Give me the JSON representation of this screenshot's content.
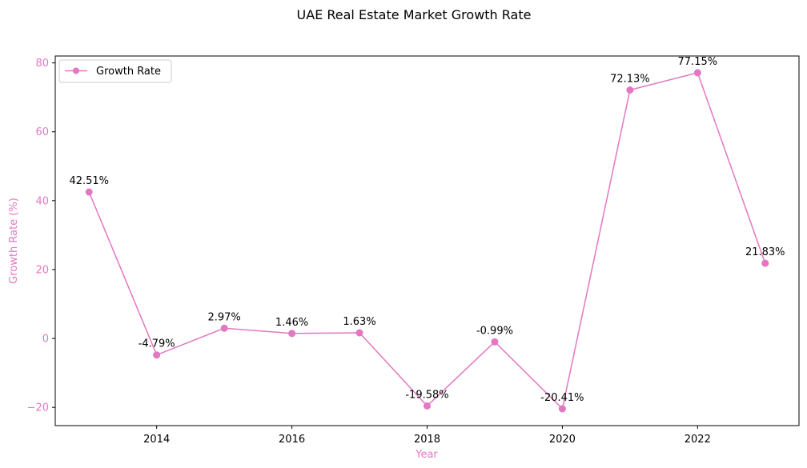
{
  "chart_data": {
    "type": "line",
    "title": "UAE Real Estate Market Growth Rate",
    "xlabel": "Year",
    "ylabel": "Growth Rate (%)",
    "x": [
      2013,
      2014,
      2015,
      2016,
      2017,
      2018,
      2019,
      2020,
      2021,
      2022,
      2023
    ],
    "series": [
      {
        "name": "Growth Rate",
        "values": [
          42.51,
          -4.79,
          2.97,
          1.46,
          1.63,
          -19.58,
          -0.99,
          -20.41,
          72.13,
          77.15,
          21.83
        ],
        "labels": [
          "42.51%",
          "-4.79%",
          "2.97%",
          "1.46%",
          "1.63%",
          "-19.58%",
          "-0.99%",
          "-20.41%",
          "72.13%",
          "77.15%",
          "21.83%"
        ]
      }
    ],
    "xticks": [
      2014,
      2016,
      2018,
      2020,
      2022
    ],
    "xtick_labels": [
      "2014",
      "2016",
      "2018",
      "2020",
      "2022"
    ],
    "yticks": [
      -20,
      0,
      20,
      40,
      60,
      80
    ],
    "ytick_labels": [
      "−20",
      "0",
      "20",
      "40",
      "60",
      "80"
    ],
    "xlim": [
      2012.5,
      2023.5
    ],
    "ylim": [
      -25.3,
      82.0
    ],
    "grid": false,
    "legend_position": "top-left",
    "colors": {
      "series": "#e377c2",
      "ylabel": "#e377c2",
      "ytick_labels": "#e377c2",
      "xlabel": "#e377c2",
      "xtick_labels": "#000000"
    }
  }
}
